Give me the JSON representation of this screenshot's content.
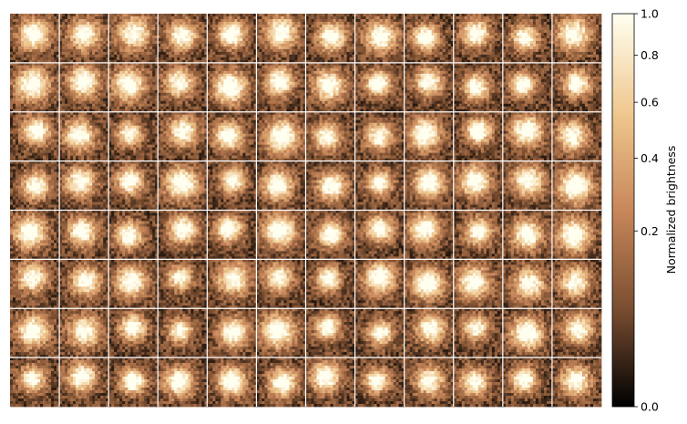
{
  "chart_data": {
    "type": "heatmap",
    "title": "",
    "subtitle": "",
    "xlabel": "",
    "ylabel": "",
    "grid": {
      "rows": 8,
      "cols": 12
    },
    "colormap": "copper",
    "colormap_colors": [
      "#000000",
      "#7a4e31",
      "#c8875a",
      "#f0c890",
      "#fffff0"
    ],
    "panel_divider_color": "#ffffff",
    "colorbar": {
      "label": "Normalized brightness",
      "ticks": [
        {
          "value": 0.0,
          "label": "0.0"
        },
        {
          "value": 0.2,
          "label": "0.2"
        },
        {
          "value": 0.4,
          "label": "0.4"
        },
        {
          "value": 0.6,
          "label": "0.6"
        },
        {
          "value": 0.8,
          "label": "0.8"
        },
        {
          "value": 1.0,
          "label": "1.0"
        }
      ],
      "range": [
        0.0,
        1.0
      ],
      "scale": "power-normalized (nonlinear)"
    }
  }
}
